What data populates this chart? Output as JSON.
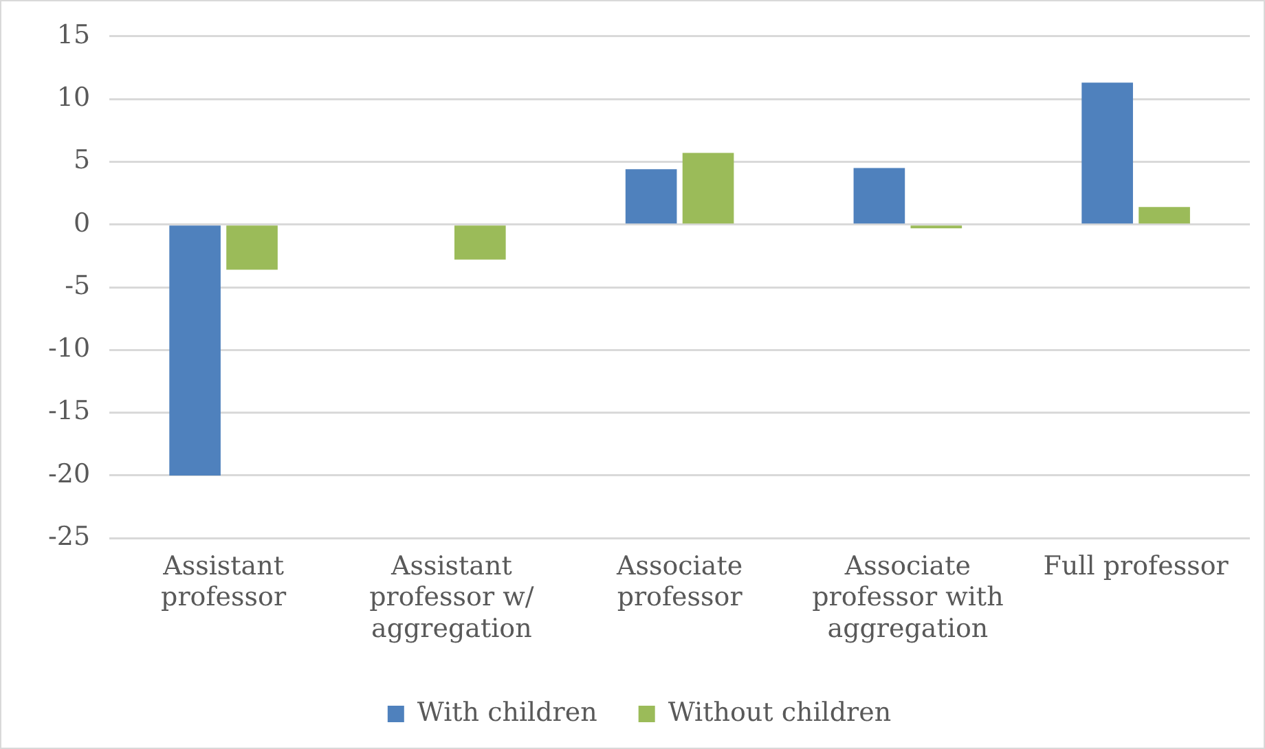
{
  "chart_data": {
    "type": "bar",
    "categories": [
      "Assistant professor",
      "Assistant professor w/ aggregation",
      "Associate professor",
      "Associate professor with aggregation",
      "Full professor"
    ],
    "series": [
      {
        "name": "With children",
        "color": "#4f81bd",
        "values": [
          -20,
          null,
          4.4,
          4.5,
          11.3
        ]
      },
      {
        "name": "Without children",
        "color": "#9bbb59",
        "values": [
          -3.6,
          -2.8,
          5.7,
          -0.3,
          1.4
        ]
      }
    ],
    "ylim": [
      -25,
      15
    ],
    "yticks": [
      -25,
      -20,
      -15,
      -10,
      -5,
      0,
      5,
      10,
      15
    ],
    "grid": "y",
    "legend": "bottom"
  }
}
